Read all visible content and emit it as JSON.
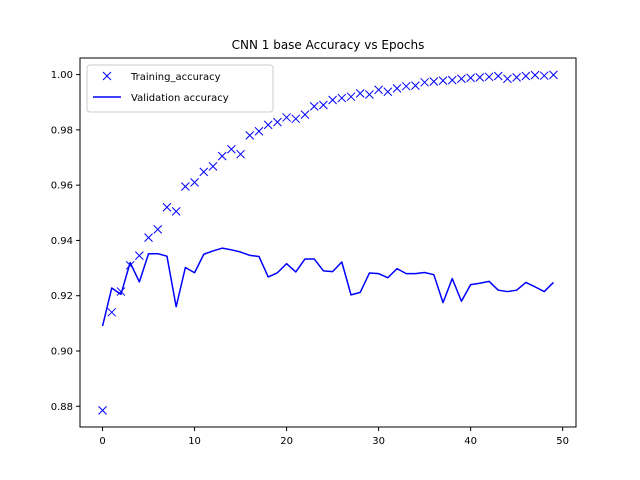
{
  "chart_data": {
    "type": "line",
    "title": "CNN 1 base Accuracy vs Epochs",
    "xlabel": "",
    "ylabel": "",
    "xlim": [
      -2.45,
      51.45
    ],
    "ylim": [
      0.8725,
      1.006
    ],
    "x_ticks": [
      0,
      10,
      20,
      30,
      40,
      50
    ],
    "y_ticks": [
      0.88,
      0.9,
      0.92,
      0.94,
      0.96,
      0.98,
      1.0
    ],
    "x_tick_labels": [
      "0",
      "10",
      "20",
      "30",
      "40",
      "50"
    ],
    "y_tick_labels": [
      "0.88",
      "0.90",
      "0.92",
      "0.94",
      "0.96",
      "0.98",
      "1.00"
    ],
    "legend_position": "top-left",
    "grid": false,
    "x": [
      0,
      1,
      2,
      3,
      4,
      5,
      6,
      7,
      8,
      9,
      10,
      11,
      12,
      13,
      14,
      15,
      16,
      17,
      18,
      19,
      20,
      21,
      22,
      23,
      24,
      25,
      26,
      27,
      28,
      29,
      30,
      31,
      32,
      33,
      34,
      35,
      36,
      37,
      38,
      39,
      40,
      41,
      42,
      43,
      44,
      45,
      46,
      47,
      48,
      49
    ],
    "series": [
      {
        "name": "Training_accuracy",
        "style": "marker-x",
        "color": "#0000ff",
        "values": [
          0.8785,
          0.914,
          0.9215,
          0.931,
          0.9345,
          0.941,
          0.944,
          0.952,
          0.9505,
          0.9595,
          0.961,
          0.9648,
          0.9668,
          0.9705,
          0.973,
          0.9712,
          0.978,
          0.9795,
          0.9818,
          0.9828,
          0.9845,
          0.984,
          0.9855,
          0.9885,
          0.989,
          0.9908,
          0.9915,
          0.992,
          0.9932,
          0.9928,
          0.9945,
          0.9938,
          0.995,
          0.9958,
          0.996,
          0.9972,
          0.9975,
          0.9978,
          0.998,
          0.9985,
          0.9988,
          0.999,
          0.9992,
          0.9995,
          0.9985,
          0.999,
          0.9995,
          0.9998,
          0.9996,
          0.9999
        ]
      },
      {
        "name": "Validation accuracy",
        "style": "line",
        "color": "#0000ff",
        "values": [
          0.909,
          0.9228,
          0.9205,
          0.932,
          0.925,
          0.9352,
          0.9352,
          0.9343,
          0.916,
          0.9302,
          0.9283,
          0.935,
          0.9362,
          0.9372,
          0.9366,
          0.9358,
          0.9346,
          0.9342,
          0.9268,
          0.9283,
          0.9316,
          0.9286,
          0.9333,
          0.9333,
          0.929,
          0.9287,
          0.9322,
          0.9203,
          0.9212,
          0.9282,
          0.928,
          0.9265,
          0.9298,
          0.928,
          0.928,
          0.9284,
          0.9276,
          0.9175,
          0.9262,
          0.918,
          0.924,
          0.9245,
          0.9252,
          0.922,
          0.9215,
          0.922,
          0.9248,
          0.9232,
          0.9215,
          0.9248
        ]
      }
    ]
  }
}
